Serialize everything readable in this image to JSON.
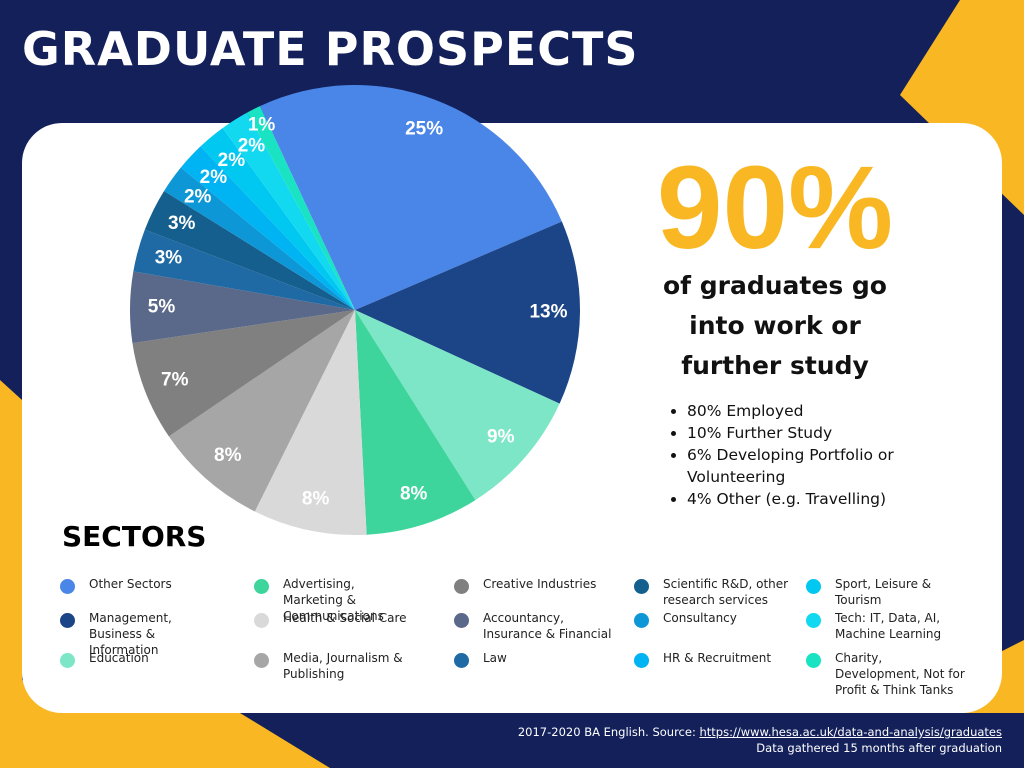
{
  "title": "GRADUATE PROSPECTS",
  "chart_data": {
    "type": "pie",
    "categories": [
      "Other Sectors",
      "Management, Business & Information",
      "Education",
      "Advertising, Marketing & Communications",
      "Health & Social Care",
      "Media, Journalism & Publishing",
      "Creative Industries",
      "Accountancy, Insurance & Financial",
      "Law",
      "Scientific R&D, other research services",
      "Consultancy",
      "HR & Recruitment",
      "Sport, Leisure & Tourism",
      "Tech: IT, Data, AI, Machine Learning",
      "Charity, Development, Not for Profit & Think Tanks"
    ],
    "values": [
      25,
      13,
      9,
      8,
      8,
      8,
      7,
      5,
      3,
      3,
      2,
      2,
      2,
      2,
      1
    ],
    "value_labels": [
      "25%",
      "13%",
      "9%",
      "8%",
      "8%",
      "8%",
      "7%",
      "5%",
      "3%",
      "3%",
      "2%",
      "2%",
      "2%",
      "2%",
      "1%"
    ],
    "colors": [
      "#4a86e8",
      "#1c4587",
      "#7de6c6",
      "#3dd59c",
      "#d9d9d9",
      "#a6a6a6",
      "#808080",
      "#5a6889",
      "#1f6aa5",
      "#155f8e",
      "#0e97d6",
      "#00b3f2",
      "#00c8f0",
      "#12d9ef",
      "#19e3c3"
    ],
    "legend_title": "SECTORS"
  },
  "highlight": {
    "value": "90%",
    "caption": "of graduates go into work or further study",
    "bullets": [
      "80% Employed",
      "10% Further Study",
      "6% Developing Portfolio or Volunteering",
      "4% Other (e.g. Travelling)"
    ]
  },
  "footer": {
    "source_prefix": "2017-2020 BA English. Source:",
    "source_url": "https://www.hesa.ac.uk/data-and-analysis/graduates",
    "note": "Data gathered 15 months after graduation"
  }
}
